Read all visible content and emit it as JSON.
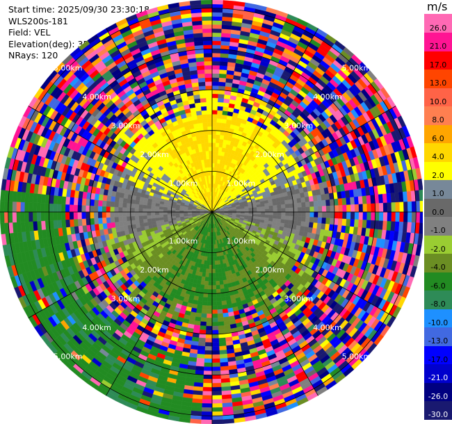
{
  "header": {
    "start_time": "Start time: 2025/09/30 23:30:18",
    "instrument": "WLS200s-181",
    "field": "Field: VEL",
    "elevation": "Elevation(deg): 35.00",
    "nrays": "NRays: 120"
  },
  "chart_data": {
    "type": "heatmap",
    "projection": "ppi-polar",
    "field": "VEL",
    "units": "m/s",
    "n_rays": 120,
    "elevation_deg": 35.0,
    "max_range_km": 5.2,
    "range_rings_km": [
      1.0,
      2.0,
      3.0,
      4.0,
      5.0
    ],
    "range_ring_labels": [
      "1.00km",
      "2.00km",
      "3.00km",
      "4.00km",
      "5.00km"
    ],
    "spokes_deg": [
      0,
      30,
      60,
      90,
      120,
      150,
      180,
      210,
      240,
      270,
      300,
      330
    ],
    "colorbar": {
      "unit": "m/s",
      "levels": [
        -30.0,
        -26.0,
        -21.0,
        -17.0,
        -13.0,
        -10.0,
        -8.0,
        -6.0,
        -4.0,
        -2.0,
        -1.0,
        0.0,
        1.0,
        2.0,
        4.0,
        6.0,
        8.0,
        10.0,
        13.0,
        17.0,
        21.0,
        26.0
      ],
      "tick_labels": [
        "-30.0",
        "-26.0",
        "-21.0",
        "-17.0",
        "-13.0",
        "-10.0",
        "-8.0",
        "-6.0",
        "-4.0",
        "-2.0",
        "-1.0",
        "0.0",
        "1.0",
        "2.0",
        "4.0",
        "6.0",
        "8.0",
        "10.0",
        "13.0",
        "17.0",
        "21.0",
        "26.0"
      ],
      "colors": [
        "#191970",
        "#000080",
        "#0000cd",
        "#0000ff",
        "#4169e1",
        "#1e90ff",
        "#2e8b57",
        "#228b22",
        "#6b8e23",
        "#9acd32",
        "#808080",
        "#696969",
        "#778899",
        "#ffff00",
        "#ffd700",
        "#ffa500",
        "#ff7f50",
        "#ff6347",
        "#ff4500",
        "#ff0000",
        "#ff1493",
        "#ff69b4"
      ]
    },
    "approx_pattern": {
      "north_near_0_to_2km": "positive 1 to 6 m/s (yellow)",
      "south_near_0_to_2km": "negative -1 to -2 m/s (yellow-green)",
      "east_west_near": "near zero (grey)",
      "beyond_3km": "noise spanning full scale",
      "southwest_far": "about -6 m/s (green)"
    }
  }
}
